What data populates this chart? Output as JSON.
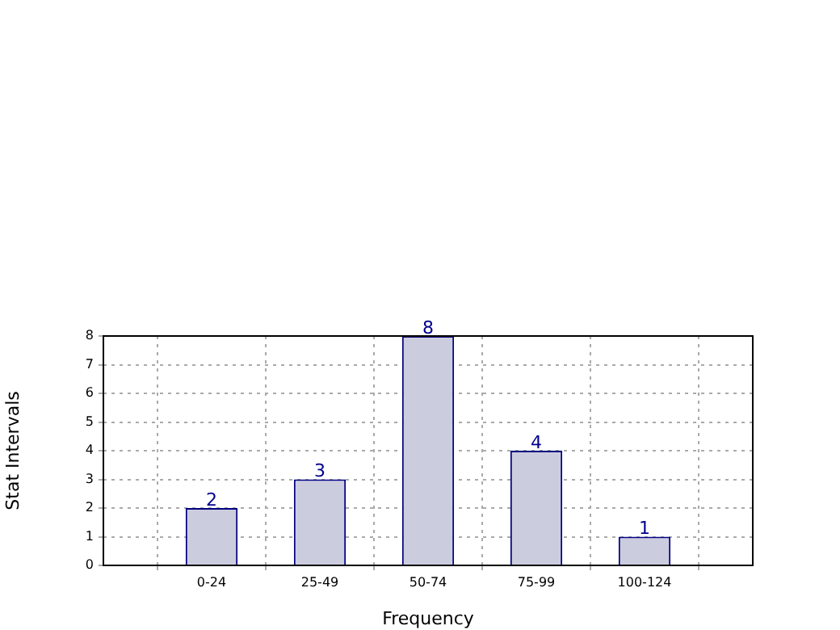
{
  "chart_data": {
    "type": "bar",
    "xlabel": "Frequency",
    "ylabel": "Stat Intervals",
    "categories": [
      "0-24",
      "25-49",
      "50-74",
      "75-99",
      "100-124"
    ],
    "values": [
      2,
      3,
      8,
      4,
      1
    ],
    "color": "#ccccdf",
    "ylim": [
      0,
      8
    ],
    "yticks": [
      0,
      1,
      2,
      3,
      4,
      5,
      6,
      7,
      8
    ],
    "grid": true,
    "data_labels": true
  }
}
